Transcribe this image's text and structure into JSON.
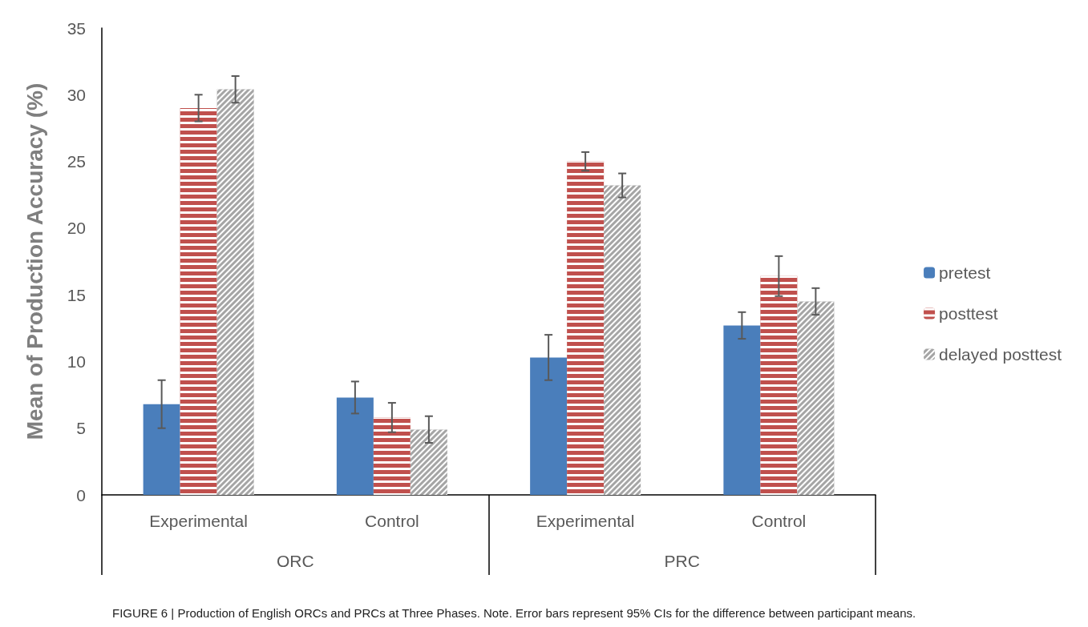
{
  "chart_data": {
    "type": "bar",
    "title": "FIGURE 6 | Production of English ORCs and PRCs at Three Phases. Note. Error bars represent 95% CIs for the difference between participant means.",
    "ylabel": "Mean of Production Accuracy (%)",
    "categories": [
      "Experimental",
      "Control",
      "Experimental",
      "Control"
    ],
    "annotations": [
      "ORC",
      "PRC"
    ],
    "series": [
      {
        "name": "pretest",
        "color": "#4a7ebb",
        "values": [
          6.8,
          7.3,
          10.3,
          12.7
        ],
        "errors": [
          1.8,
          1.2,
          1.7,
          1.0
        ]
      },
      {
        "name": "posttest",
        "color": "#c0504d",
        "values": [
          29.0,
          5.8,
          25.0,
          16.4
        ],
        "errors": [
          1.0,
          1.1,
          0.7,
          1.5
        ]
      },
      {
        "name": "delayed posttest",
        "color": "#a5a5a5",
        "values": [
          30.4,
          4.9,
          23.2,
          14.5
        ],
        "errors": [
          1.0,
          1.0,
          0.9,
          1.0
        ]
      }
    ],
    "ylim": [
      0,
      35
    ],
    "yticks": [
      0,
      5,
      10,
      15,
      20,
      25,
      30,
      35
    ],
    "grid": false,
    "legend": "right"
  }
}
